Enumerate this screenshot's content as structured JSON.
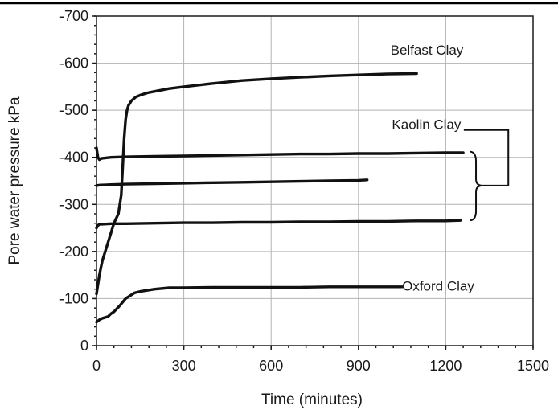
{
  "chart_data": {
    "type": "line",
    "xlabel": "Time (minutes)",
    "ylabel": "Pore water pressure kPa",
    "xlim": [
      0,
      1500
    ],
    "ylim": [
      0,
      -700
    ],
    "y_axis_inverted": true,
    "grid": true,
    "xticks": [
      "0",
      "300",
      "600",
      "900",
      "1200",
      "1500"
    ],
    "yticks": [
      "0",
      "-100",
      "-200",
      "-300",
      "-400",
      "-500",
      "-600",
      "-700"
    ],
    "annotations": [
      {
        "text": "Belfast Clay"
      },
      {
        "text": "Kaolin Clay"
      },
      {
        "text": "Oxford Clay"
      }
    ],
    "series": [
      {
        "x": [
          0,
          10,
          20,
          40,
          60,
          75,
          85,
          90,
          95,
          100,
          105,
          110,
          120,
          135,
          150,
          175,
          200,
          250,
          300,
          400,
          500,
          600,
          700,
          800,
          900,
          1000,
          1100
        ],
        "y": [
          -110,
          -150,
          -180,
          -220,
          -260,
          -280,
          -320,
          -380,
          -440,
          -480,
          -500,
          -510,
          -520,
          -528,
          -532,
          -537,
          -540,
          -546,
          -550,
          -557,
          -563,
          -567,
          -570,
          -573,
          -575,
          -577,
          -578
        ]
      },
      {
        "x": [
          0,
          5,
          10,
          15,
          20,
          50,
          100,
          200,
          300,
          400,
          500,
          600,
          700,
          800,
          900,
          1000,
          1100,
          1200,
          1260
        ],
        "y": [
          -420,
          -400,
          -395,
          -397,
          -398,
          -400,
          -401,
          -402,
          -403,
          -404,
          -405,
          -406,
          -407,
          -407,
          -408,
          -408,
          -409,
          -410,
          -410
        ]
      },
      {
        "x": [
          0,
          10,
          50,
          100,
          200,
          300,
          400,
          500,
          600,
          700,
          800,
          900,
          930
        ],
        "y": [
          -340,
          -341,
          -342,
          -343,
          -344,
          -345,
          -346,
          -347,
          -348,
          -349,
          -350,
          -351,
          -352
        ]
      },
      {
        "x": [
          0,
          5,
          10,
          20,
          50,
          100,
          200,
          300,
          400,
          500,
          600,
          700,
          800,
          900,
          1000,
          1100,
          1200,
          1250
        ],
        "y": [
          -250,
          -255,
          -258,
          -258,
          -259,
          -259,
          -260,
          -261,
          -261,
          -262,
          -262,
          -263,
          -263,
          -264,
          -264,
          -265,
          -265,
          -266
        ]
      },
      {
        "x": [
          0,
          10,
          20,
          30,
          40,
          50,
          60,
          80,
          100,
          130,
          150,
          200,
          250,
          300,
          400,
          500,
          600,
          700,
          800,
          900,
          1000,
          1050
        ],
        "y": [
          -50,
          -55,
          -58,
          -60,
          -62,
          -68,
          -72,
          -85,
          -100,
          -112,
          -115,
          -120,
          -123,
          -123,
          -124,
          -124,
          -124,
          -124,
          -125,
          -125,
          -125,
          -125
        ]
      }
    ]
  }
}
